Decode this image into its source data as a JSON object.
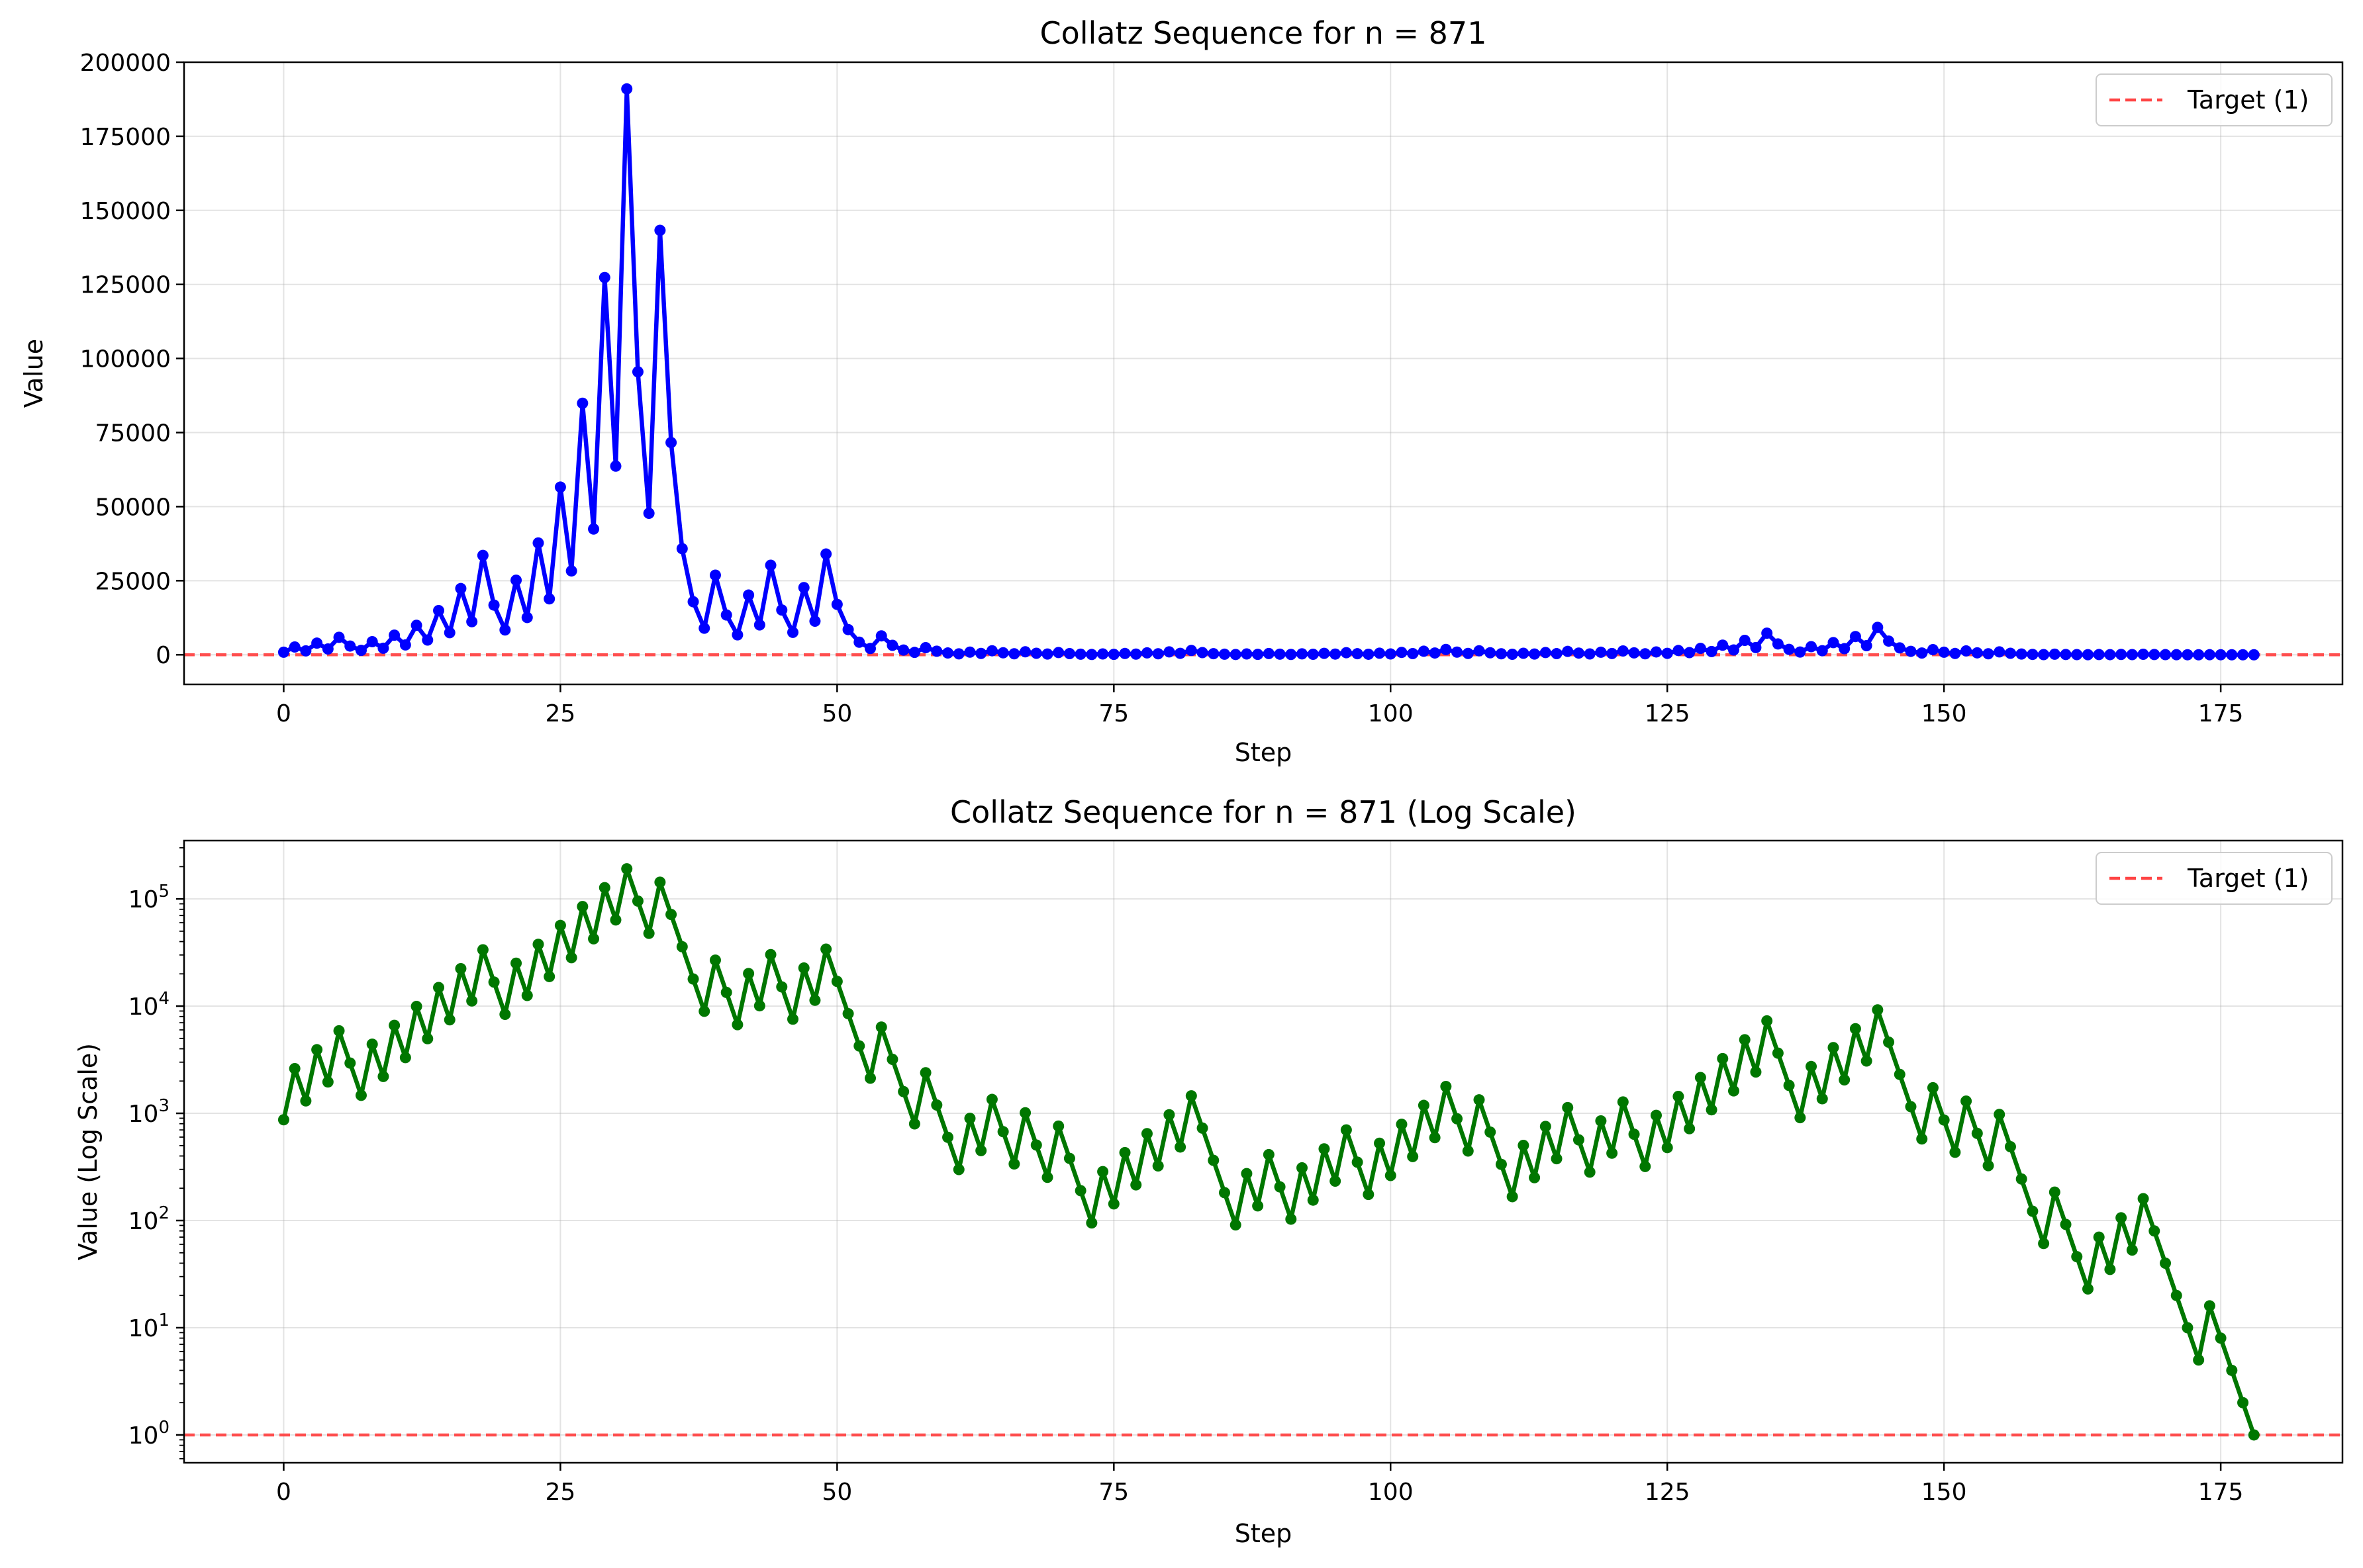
{
  "chart_data": [
    {
      "type": "line",
      "title": "Collatz Sequence for n = 871",
      "xlabel": "Step",
      "ylabel": "Value",
      "yscale": "linear",
      "xlim": [
        -9,
        186
      ],
      "ylim": [
        -10000,
        200000
      ],
      "xticks": [
        0,
        25,
        50,
        75,
        100,
        125,
        150,
        175
      ],
      "yticks": [
        0,
        25000,
        50000,
        75000,
        100000,
        125000,
        150000,
        175000,
        200000
      ],
      "grid": true,
      "line_color": "#0000ff",
      "legend": {
        "position": "top-right",
        "entries": [
          {
            "label": "Target (1)",
            "color": "#ff4444",
            "style": "dashed"
          }
        ]
      },
      "reference_line": {
        "y": 1,
        "color": "#ff4444",
        "style": "dashed"
      },
      "series": [
        {
          "source": "collatz",
          "start": 871
        }
      ]
    },
    {
      "type": "line",
      "title": "Collatz Sequence for n = 871 (Log Scale)",
      "xlabel": "Step",
      "ylabel": "Value (Log Scale)",
      "yscale": "log",
      "xlim": [
        -9,
        186
      ],
      "ylim": [
        0.55,
        350000
      ],
      "xticks": [
        0,
        25,
        50,
        75,
        100,
        125,
        150,
        175
      ],
      "yticks_exp": [
        0,
        1,
        2,
        3,
        4,
        5
      ],
      "grid": true,
      "line_color": "#007700",
      "legend": {
        "position": "top-right",
        "entries": [
          {
            "label": "Target (1)",
            "color": "#ff4444",
            "style": "dashed"
          }
        ]
      },
      "reference_line": {
        "y": 1,
        "color": "#ff4444",
        "style": "dashed"
      },
      "series": [
        {
          "source": "collatz",
          "start": 871
        }
      ]
    }
  ],
  "sequence": [
    871,
    2614,
    1307,
    3922,
    1961,
    5884,
    2942,
    1471,
    4414,
    2207,
    6622,
    3311,
    9934,
    4967,
    14902,
    7451,
    22354,
    11177,
    33532,
    16766,
    8383,
    25150,
    12575,
    37726,
    18863,
    56590,
    28295,
    84886,
    42443,
    127330,
    63665,
    190996,
    95498,
    47749,
    143248,
    71624,
    35812,
    17906,
    8953,
    26860,
    13430,
    6715,
    20146,
    10073,
    30220,
    15110,
    7555,
    22666,
    11333,
    34000,
    17000,
    8500,
    4250,
    2125,
    6376,
    3188,
    1594,
    797,
    2392,
    1196,
    598,
    299,
    898,
    449,
    1348,
    674,
    337,
    1012,
    506,
    253,
    760,
    380,
    190,
    95,
    286,
    143,
    430,
    215,
    646,
    323,
    970,
    485,
    1456,
    728,
    364,
    182,
    91,
    274,
    137,
    412,
    206,
    103,
    310,
    155,
    466,
    233,
    700,
    350,
    175,
    526,
    263,
    790,
    395,
    1186,
    593,
    1780,
    890,
    445,
    1336,
    668,
    334,
    167,
    502,
    251,
    754,
    377,
    1132,
    566,
    283,
    850,
    425,
    1276,
    638,
    319,
    958,
    479,
    1438,
    719,
    2158,
    1079,
    3238,
    1619,
    4858,
    2429,
    7288,
    3644,
    1822,
    911,
    2734,
    1367,
    4102,
    2051,
    6154,
    3077,
    9232,
    4616,
    2308,
    1154,
    577,
    1732,
    866,
    433,
    1300,
    650,
    325,
    976,
    488,
    244,
    122,
    61,
    184,
    92,
    46,
    23,
    70,
    35,
    106,
    53,
    160,
    80,
    40,
    20,
    10,
    5,
    16,
    8,
    4,
    2,
    1
  ]
}
